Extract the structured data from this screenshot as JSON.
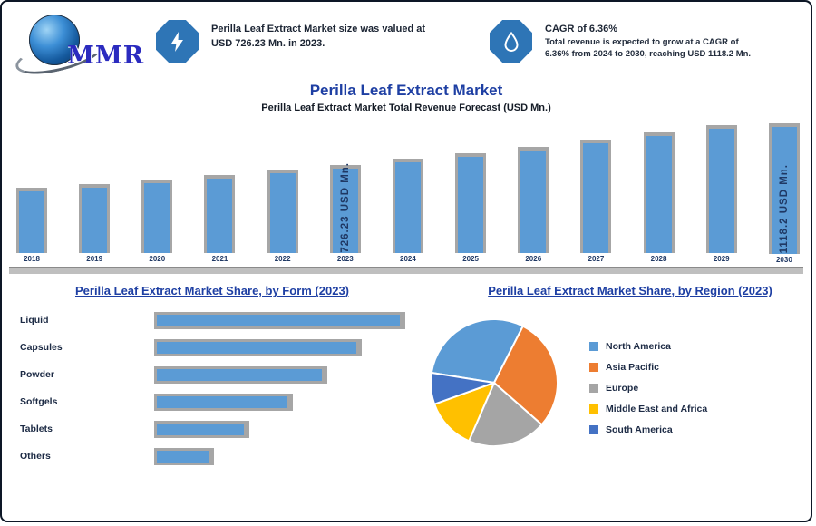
{
  "brand": {
    "name": "MMR"
  },
  "header": {
    "stat_left": {
      "icon": "lightning-icon",
      "line1": "Perilla Leaf Extract Market size was valued at",
      "line2": "USD 726.23 Mn. in 2023."
    },
    "stat_right": {
      "icon": "droplet-icon",
      "line1": "CAGR of 6.36%",
      "line2": "Total revenue is expected to grow at a CAGR of",
      "line3": "6.36% from 2024 to 2030, reaching USD 1118.2 Mn."
    }
  },
  "title": "Perilla Leaf Extract Market",
  "subtitle": "Perilla Leaf Extract Market Total Revenue Forecast (USD Mn.)",
  "sections": {
    "form_heading": "Perilla Leaf Extract Market Share, by Form (2023)",
    "region_heading": "Perilla Leaf Extract Market Share, by Region (2023)"
  },
  "colors": {
    "bar_blue": "#5b9bd5",
    "bar_shadow_gray": "#a6a6a6",
    "title_blue": "#1e3fa3",
    "dark_navy_text": "#1f3864",
    "icon_circle_blue": "#2e75b6",
    "pie_palette": [
      "#5b9bd5",
      "#ed7d31",
      "#a5a5a5",
      "#ffc000",
      "#4472c4"
    ]
  },
  "chart_data": [
    {
      "id": "revenue_forecast",
      "type": "bar",
      "title": "Perilla Leaf Extract Market Total Revenue Forecast (USD Mn.)",
      "x": [
        "2018",
        "2019",
        "2020",
        "2021",
        "2022",
        "2023",
        "2024",
        "2025",
        "2026",
        "2027",
        "2028",
        "2029",
        "2030"
      ],
      "values": [
        533.4,
        567.3,
        603.3,
        641.7,
        682.5,
        726.23,
        772.4,
        821.6,
        873.8,
        929.4,
        988.5,
        1051.4,
        1118.2
      ],
      "ylabel": "USD Mn.",
      "ylim": [
        0,
        1118.2
      ],
      "bar_color": "#5b9bd5",
      "annotations": [
        {
          "index": 5,
          "text": "726.23 USD Mn."
        },
        {
          "index": 12,
          "text": "1118.2 USD Mn."
        }
      ]
    },
    {
      "id": "share_by_form",
      "type": "bar",
      "orientation": "horizontal",
      "title": "Perilla Leaf Extract Market Share, by Form (2023)",
      "categories": [
        "Liquid",
        "Capsules",
        "Powder",
        "Softgels",
        "Tablets",
        "Others"
      ],
      "values": [
        28,
        23,
        19,
        15,
        10,
        6
      ],
      "unit": "%",
      "bar_color": "#5b9bd5"
    },
    {
      "id": "share_by_region",
      "type": "pie",
      "title": "Perilla Leaf Extract Market Share, by Region (2023)",
      "labels": [
        "North America",
        "Asia Pacific",
        "Europe",
        "Middle East and Africa",
        "South America"
      ],
      "values": [
        30,
        29,
        20,
        13,
        8
      ],
      "colors": [
        "#5b9bd5",
        "#ed7d31",
        "#a5a5a5",
        "#ffc000",
        "#4472c4"
      ],
      "start_angle_deg": -81,
      "legend_position": "right"
    }
  ]
}
